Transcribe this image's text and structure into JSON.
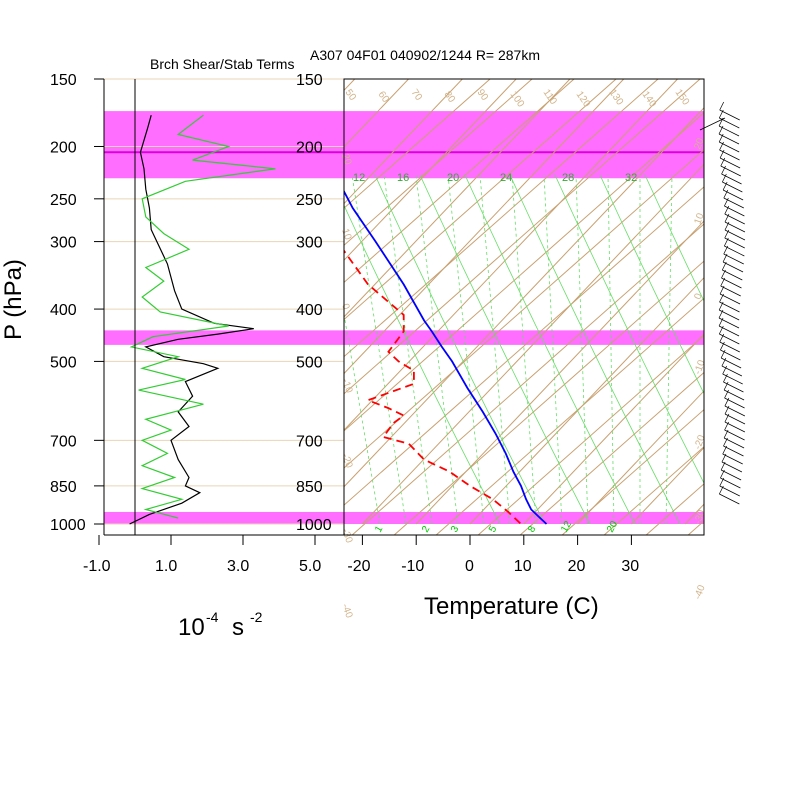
{
  "left_panel": {
    "title": "Brch Shear/Stab Terms",
    "units_base": "10",
    "units_exp1": "-4",
    "units_s": "s",
    "units_exp2": "-2"
  },
  "right_panel": {
    "title": "A307 04F01 040902/1244 R= 287km",
    "xlabel": "Temperature (C)",
    "ylabel": "P (hPa)"
  },
  "chart_data": [
    {
      "type": "line",
      "name": "branch_shear_stability_terms",
      "title": "Brch Shear/Stab Terms",
      "xlabel": "10^-4 s^-2",
      "xticks": [
        "-1.0",
        "1.0",
        "3.0",
        "5.0"
      ],
      "xlim": [
        -1.0,
        5.0
      ],
      "yticks": [
        "150",
        "200",
        "250",
        "300",
        "400",
        "500",
        "700",
        "850",
        "1000"
      ],
      "ylim": [
        1000,
        150
      ],
      "y_scale": "log",
      "zero_line": 0,
      "series": [
        {
          "color": "#000000",
          "points": [
            [
              0.45,
              175
            ],
            [
              0.35,
              185
            ],
            [
              0.15,
              205
            ],
            [
              0.25,
              220
            ],
            [
              0.3,
              240
            ],
            [
              0.4,
              260
            ],
            [
              0.45,
              285
            ],
            [
              0.9,
              330
            ],
            [
              1.1,
              370
            ],
            [
              1.3,
              400
            ],
            [
              2.2,
              425
            ],
            [
              3.3,
              435
            ],
            [
              2.3,
              445
            ],
            [
              1.2,
              455
            ],
            [
              0.3,
              470
            ],
            [
              0.8,
              490
            ],
            [
              1.9,
              505
            ],
            [
              2.3,
              515
            ],
            [
              1.4,
              545
            ],
            [
              1.6,
              580
            ],
            [
              1.2,
              620
            ],
            [
              1.5,
              660
            ],
            [
              1.0,
              700
            ],
            [
              1.2,
              760
            ],
            [
              1.5,
              820
            ],
            [
              1.4,
              850
            ],
            [
              1.8,
              875
            ],
            [
              1.3,
              915
            ],
            [
              0.4,
              960
            ],
            [
              -0.15,
              1000
            ]
          ]
        },
        {
          "color": "#33cc33",
          "points": [
            [
              1.9,
              175
            ],
            [
              1.2,
              190
            ],
            [
              2.6,
              200
            ],
            [
              1.6,
              212
            ],
            [
              3.9,
              220
            ],
            [
              1.4,
              232
            ],
            [
              0.2,
              250
            ],
            [
              0.3,
              270
            ],
            [
              0.8,
              290
            ],
            [
              1.5,
              310
            ],
            [
              0.3,
              335
            ],
            [
              0.8,
              355
            ],
            [
              0.2,
              380
            ],
            [
              0.7,
              405
            ],
            [
              2.6,
              430
            ],
            [
              0.5,
              450
            ],
            [
              -0.1,
              470
            ],
            [
              1.2,
              490
            ],
            [
              0.2,
              515
            ],
            [
              1.4,
              540
            ],
            [
              0.1,
              565
            ],
            [
              1.9,
              600
            ],
            [
              0.3,
              640
            ],
            [
              1.0,
              670
            ],
            [
              0.2,
              700
            ],
            [
              0.9,
              740
            ],
            [
              0.2,
              780
            ],
            [
              1.1,
              820
            ],
            [
              0.2,
              860
            ],
            [
              1.3,
              900
            ],
            [
              0.3,
              940
            ],
            [
              1.2,
              975
            ]
          ]
        }
      ]
    },
    {
      "type": "line",
      "name": "skew_t_sounding",
      "title": "A307 04F01 040902/1244 R= 287km",
      "xlabel": "Temperature (C)",
      "ylabel": "P (hPa)",
      "xticks": [
        "-20",
        "-10",
        "0",
        "10",
        "20",
        "30"
      ],
      "xlim": [
        -25,
        41
      ],
      "ylim": [
        1000,
        150
      ],
      "y_scale": "log",
      "yticks": [
        "150",
        "200",
        "250",
        "300",
        "400",
        "500",
        "700",
        "850",
        "1000"
      ],
      "series": [
        {
          "name": "temperature",
          "color": "#0000ff",
          "style": "solid",
          "points": [
            [
              -64,
              175
            ],
            [
              -58,
              200
            ],
            [
              -53,
              225
            ],
            [
              -46,
              260
            ],
            [
              -37,
              300
            ],
            [
              -26,
              360
            ],
            [
              -18,
              420
            ],
            [
              -15,
              440
            ],
            [
              -11,
              470
            ],
            [
              -7,
              500
            ],
            [
              -1,
              560
            ],
            [
              5,
              620
            ],
            [
              10,
              680
            ],
            [
              14,
              740
            ],
            [
              17,
              800
            ],
            [
              20,
              850
            ],
            [
              22,
              900
            ],
            [
              24,
              940
            ],
            [
              27,
              970
            ],
            [
              30,
              1000
            ]
          ]
        },
        {
          "name": "dewpoint",
          "color": "#ff0000",
          "style": "dashed",
          "points": [
            [
              -80,
              195
            ],
            [
              -74,
              210
            ],
            [
              -70,
              225
            ],
            [
              -63,
              250
            ],
            [
              -56,
              275
            ],
            [
              -52,
              300
            ],
            [
              -40,
              360
            ],
            [
              -26,
              410
            ],
            [
              -26,
              440
            ],
            [
              -32,
              480
            ],
            [
              -28,
              500
            ],
            [
              -22,
              520
            ],
            [
              -22,
              550
            ],
            [
              -40,
              590
            ],
            [
              -32,
              610
            ],
            [
              -26,
              630
            ],
            [
              -30,
              650
            ],
            [
              -34,
              690
            ],
            [
              -24,
              710
            ],
            [
              -18,
              760
            ],
            [
              -8,
              800
            ],
            [
              0,
              850
            ],
            [
              9,
              900
            ],
            [
              15,
              950
            ],
            [
              20,
              1000
            ]
          ]
        }
      ],
      "highlight_bands_hPa": [
        [
          172,
          229
        ],
        [
          438,
          466
        ],
        [
          950,
          1000
        ]
      ],
      "mixing_ratio_labels": [
        "1",
        "2",
        "3",
        "5",
        "8",
        "12",
        "20"
      ],
      "moist_adiabat_labels": [
        "12",
        "16",
        "20",
        "24",
        "28",
        "32"
      ],
      "dry_adiabat_labels": [
        "50",
        "60",
        "70",
        "80",
        "90",
        "100",
        "110",
        "120",
        "130",
        "140",
        "150"
      ],
      "edge_labels": [
        "20",
        "10",
        "0",
        "-10",
        "-20",
        "-30",
        "-40"
      ],
      "wind_barbs": "present along right edge"
    }
  ]
}
